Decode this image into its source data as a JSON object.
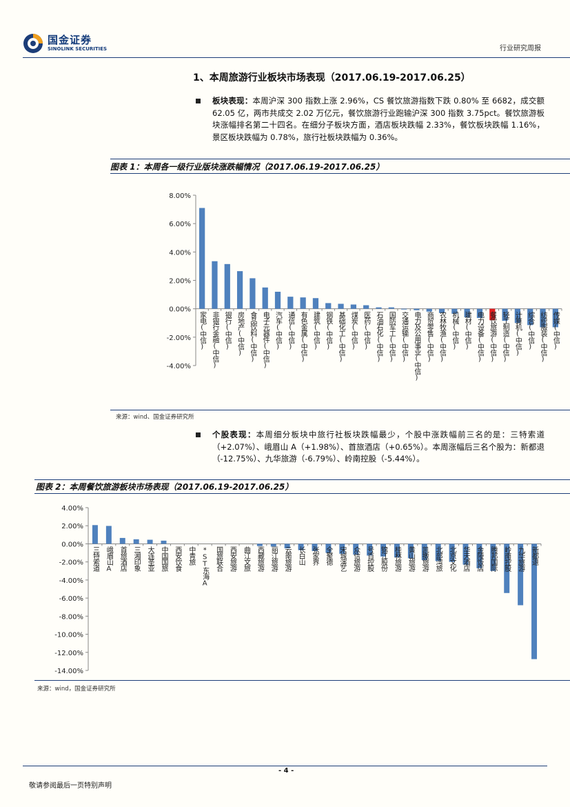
{
  "header": {
    "brand_cn": "国金证券",
    "brand_en": "SINOLINK SECURITIES",
    "report_type": "行业研究周报",
    "logo_icon": "sinolink-logo-icon",
    "brand_color": "#1c3d78"
  },
  "section": {
    "title": "1、本周旅游行业板块市场表现（2017.06.19-2017.06.25）"
  },
  "para1": {
    "label": "板块表现：",
    "text": "本周沪深 300 指数上涨 2.96%，CS 餐饮旅游指数下跌 0.80% 至 6682，成交额 62.05 亿，两市共成交 2.02 万亿元，餐饮旅游行业跑输沪深 300 指数 3.75pct。餐饮旅游板块涨幅排名第二十四名。在细分子板块方面，酒店板块跌幅 2.33%，餐饮板块跌幅 1.16%，景区板块跌幅为 0.78%，旅行社板块跌幅为 0.36%。"
  },
  "figure1": {
    "title": "图表 1：本周各一级行业版块涨跌幅情况（2017.06.19-2017.06.25）",
    "source": "来源：wind、国金证券研究所"
  },
  "para2": {
    "label": "个股表现：",
    "text": "本周细分板块中旅行社板块跌幅最少，个股中涨跌幅前三名的是：三特索道（+2.07%）、峨眉山 A（+1.98%）、首旅酒店（+0.65%）。本周涨幅后三名个股为：新都退（-12.75%）、九华旅游（-6.79%）、岭南控股（-5.44%）。"
  },
  "figure2": {
    "title": "图表 2：本周餐饮旅游板块市场表现（2017.06.19-2017.06.25）",
    "source": "来源：wind，国金证券研究所"
  },
  "chart_data": [
    {
      "type": "bar",
      "bar_color": "#4f81bd",
      "highlight_color": "#e02020",
      "highlight_category": "餐饮旅游(中信)",
      "ylim": [
        -4,
        8
      ],
      "yticks": [
        "-4.00%",
        "-2.00%",
        "0.00%",
        "2.00%",
        "4.00%",
        "6.00%",
        "8.00%"
      ],
      "categories": [
        "家电(中信)",
        "非银行金融(中信)",
        "银行(中信)",
        "房地产(中信)",
        "食品饮料(中信)",
        "电子元器件(中信)",
        "汽车(中信)",
        "通信(中信)",
        "有色金属(中信)",
        "建筑(中信)",
        "钢铁(中信)",
        "基础化工(中信)",
        "煤炭(中信)",
        "医药(中信)",
        "石油石化(中信)",
        "国防军工(中信)",
        "交通运输(中信)",
        "电力及公用事业(中信)",
        "商贸零售(中信)",
        "农林牧渔(中信)",
        "机械(中信)",
        "建材(中信)",
        "电力设备(中信)",
        "餐饮旅游(中信)",
        "轻工制造(中信)",
        "计算机(中信)",
        "综合(中信)",
        "纺织服装(中信)",
        "传媒(中信)"
      ],
      "values": [
        7.1,
        3.35,
        3.15,
        2.65,
        2.15,
        1.5,
        1.2,
        0.85,
        0.8,
        0.75,
        0.4,
        0.35,
        0.3,
        0.25,
        0.1,
        0.1,
        -0.05,
        -0.1,
        -0.2,
        -0.3,
        -0.35,
        -0.6,
        -0.65,
        -0.8,
        -0.85,
        -1.0,
        -1.15,
        -1.3,
        -1.3
      ]
    },
    {
      "type": "bar",
      "bar_color": "#4f81bd",
      "ylim": [
        -14,
        4
      ],
      "yticks": [
        "-14.00%",
        "-12.00%",
        "-10.00%",
        "-8.00%",
        "-6.00%",
        "-4.00%",
        "-2.00%",
        "0.00%",
        "2.00%",
        "4.00%"
      ],
      "categories": [
        "三特索道",
        "峨眉山A",
        "首旅酒店",
        "三湘印象",
        "大连圣亚",
        "中国国旅",
        "西安饮食",
        "中青旅",
        "*ST东海A",
        "国旅联合",
        "西安旅游",
        "曲江文旅",
        "西藏旅游",
        "丽江旅游",
        "云南旅游",
        "长白山",
        "张家界",
        "全聚德",
        "宋城演艺",
        "众信旅游",
        "号百控股",
        "锦江股份",
        "桂林旅游",
        "黄山旅游",
        "凯撒旅游",
        "北部湾旅",
        "北京文化",
        "华天酒店",
        "金陵饭店",
        "腾邦国际",
        "岭南控股",
        "九华旅游",
        "新都退"
      ],
      "values": [
        2.07,
        1.98,
        0.65,
        0.5,
        0.45,
        0.35,
        0,
        0,
        0,
        0,
        0,
        0,
        -0.25,
        -0.3,
        -0.5,
        -0.7,
        -0.8,
        -1.0,
        -1.1,
        -1.2,
        -1.3,
        -1.4,
        -1.5,
        -1.6,
        -1.8,
        -1.9,
        -2.0,
        -2.3,
        -2.7,
        -3.0,
        -5.44,
        -6.79,
        -12.75
      ]
    }
  ],
  "footer": {
    "page": "- 4 -",
    "note": "敬请参阅最后一页特别声明"
  }
}
